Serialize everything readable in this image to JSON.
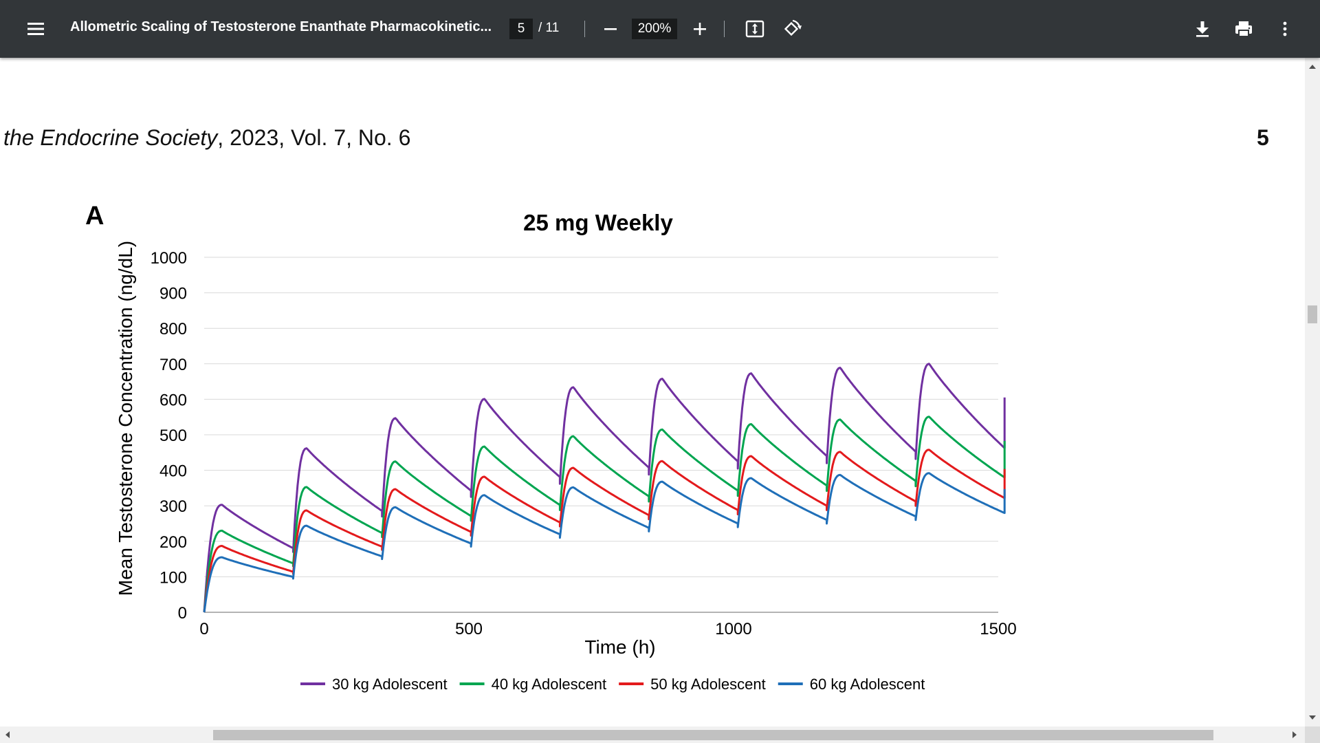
{
  "toolbar": {
    "title": "Allometric Scaling of Testosterone Enanthate Pharmacokinetic...",
    "page_current": "5",
    "page_total": "/ 11",
    "zoom": "200%",
    "icons": {
      "menu": "menu-icon",
      "zoom_out": "minus-icon",
      "zoom_in": "plus-icon",
      "fit": "fit-page-icon",
      "rotate": "rotate-icon",
      "download": "download-icon",
      "print": "print-icon",
      "more": "more-vert-icon"
    }
  },
  "page": {
    "running_head_italic": "the Endocrine Society",
    "running_head_rest": ", 2023, Vol. 7, No. 6",
    "page_number": "5",
    "panel_label": "A"
  },
  "chart_data": {
    "type": "line",
    "title": "25 mg Weekly",
    "xlabel": "Time (h)",
    "ylabel": "Mean Testosterone Concentration (ng/dL)",
    "xlim": [
      0,
      1500
    ],
    "ylim": [
      0,
      1000
    ],
    "xticks": [
      0,
      500,
      1000,
      1500
    ],
    "yticks": [
      0,
      100,
      200,
      300,
      400,
      500,
      600,
      700,
      800,
      900,
      1000
    ],
    "grid": "horizontal",
    "legend_position": "bottom",
    "dosing_interval_h": 168,
    "series": [
      {
        "name": "30 kg Adolescent",
        "color": "#7030a0",
        "troughs": [
          0,
          170,
          270,
          325,
          362,
          388,
          405,
          420,
          432
        ],
        "peaks": [
          303,
          462,
          547,
          601,
          634,
          658,
          673,
          689,
          700
        ]
      },
      {
        "name": "40 kg Adolescent",
        "color": "#00a550",
        "troughs": [
          0,
          130,
          212,
          258,
          288,
          312,
          328,
          342,
          355
        ],
        "peaks": [
          230,
          353,
          425,
          467,
          496,
          515,
          530,
          543,
          551
        ]
      },
      {
        "name": "50 kg Adolescent",
        "color": "#e31a1c",
        "troughs": [
          0,
          108,
          176,
          216,
          242,
          262,
          276,
          288,
          300
        ],
        "peaks": [
          187,
          287,
          347,
          382,
          407,
          426,
          440,
          452,
          458
        ]
      },
      {
        "name": "60 kg Adolescent",
        "color": "#1f6fb8",
        "troughs": [
          0,
          95,
          150,
          185,
          210,
          228,
          240,
          250,
          260
        ],
        "peaks": [
          155,
          244,
          296,
          330,
          352,
          368,
          378,
          387,
          392
        ]
      }
    ]
  }
}
